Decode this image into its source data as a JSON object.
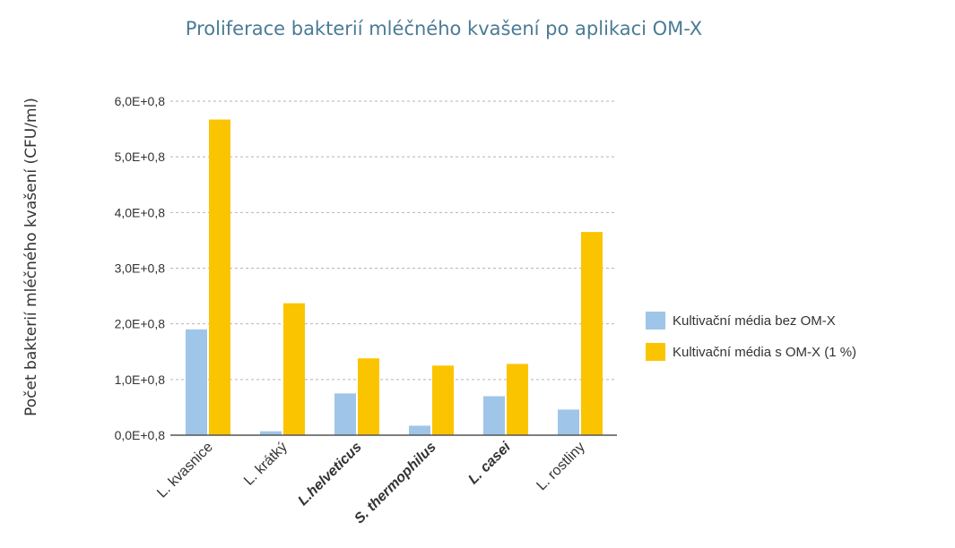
{
  "chart_data": {
    "type": "bar",
    "title": "Proliferace bakterií mléčného kvašení po aplikaci OM-X",
    "xlabel": "",
    "ylabel": "Počet bakterií mléčného kvašení (CFU/ml)",
    "categories": [
      "L. kvasnice",
      "L. krátký",
      "L.helveticus",
      "S. thermophilus",
      "L. casei",
      "L. rostliny"
    ],
    "category_bold": [
      false,
      false,
      true,
      true,
      true,
      false
    ],
    "ylim": [
      0,
      6
    ],
    "yticks": [
      0,
      1,
      2,
      3,
      4,
      5,
      6
    ],
    "ytick_labels": [
      "0,0E+0,8",
      "1,0E+0,8",
      "2,0E+0,8",
      "3,0E+0,8",
      "4,0E+0,8",
      "5,0E+0,8",
      "6,0E+0,8"
    ],
    "grid": true,
    "legend_position": "right",
    "series": [
      {
        "name": "Kultivační média bez OM-X",
        "color": "#9fc5e8",
        "values": [
          1.9,
          0.07,
          0.75,
          0.17,
          0.7,
          0.46
        ]
      },
      {
        "name": "Kultivační média s OM-X (1 %)",
        "color": "#fbc400",
        "values": [
          5.67,
          2.37,
          1.38,
          1.25,
          1.28,
          3.65
        ]
      }
    ]
  }
}
